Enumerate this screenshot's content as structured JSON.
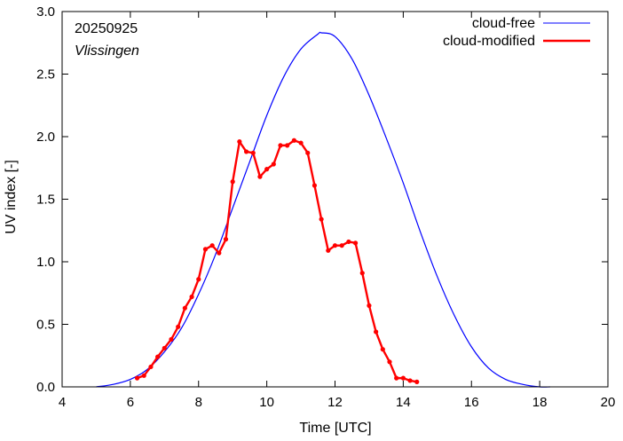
{
  "chart_data": {
    "type": "line",
    "date": "20250925",
    "station": "Vlissingen",
    "xlabel": "Time  [UTC]",
    "ylabel": "UV index  [-]",
    "xlim": [
      4,
      20
    ],
    "ylim": [
      0,
      3.0
    ],
    "x_ticks": [
      4,
      6,
      8,
      10,
      12,
      14,
      16,
      18,
      20
    ],
    "x_tick_labels": [
      "4",
      "6",
      "8",
      "10",
      "12",
      "14",
      "16",
      "18",
      "20"
    ],
    "y_ticks": [
      0,
      0.5,
      1.0,
      1.5,
      2.0,
      2.5,
      3.0
    ],
    "y_tick_labels": [
      "0.0",
      "0.5",
      "1.0",
      "1.5",
      "2.0",
      "2.5",
      "3.0"
    ],
    "legend_position": "top-right",
    "colors": {
      "cloud_free": "#0000ff",
      "cloud_modified": "#ff0000"
    },
    "series": [
      {
        "name": "cloud-free",
        "x": [
          5.0,
          5.5,
          6.0,
          6.5,
          7.0,
          7.5,
          8.0,
          8.5,
          9.0,
          9.5,
          10.0,
          10.5,
          11.0,
          11.5,
          11.6,
          12.0,
          12.5,
          13.0,
          13.5,
          14.0,
          14.5,
          15.0,
          15.5,
          16.0,
          16.5,
          17.0,
          17.5,
          18.0,
          18.3
        ],
        "values": [
          0.0,
          0.02,
          0.06,
          0.14,
          0.28,
          0.47,
          0.74,
          1.06,
          1.43,
          1.8,
          2.17,
          2.48,
          2.7,
          2.82,
          2.83,
          2.8,
          2.62,
          2.33,
          1.99,
          1.63,
          1.24,
          0.88,
          0.57,
          0.32,
          0.15,
          0.06,
          0.02,
          0.0,
          0.0
        ]
      },
      {
        "name": "cloud-modified",
        "x": [
          6.2,
          6.4,
          6.6,
          6.8,
          7.0,
          7.2,
          7.4,
          7.6,
          7.8,
          8.0,
          8.2,
          8.4,
          8.6,
          8.8,
          9.0,
          9.2,
          9.4,
          9.6,
          9.8,
          10.0,
          10.2,
          10.4,
          10.6,
          10.8,
          11.0,
          11.2,
          11.4,
          11.6,
          11.8,
          12.0,
          12.2,
          12.4,
          12.6,
          12.8,
          13.0,
          13.2,
          13.4,
          13.6,
          13.8,
          14.0,
          14.2,
          14.4,
          14.6,
          14.8,
          15.0,
          15.2,
          15.4,
          15.6,
          15.8,
          16.0,
          16.2,
          16.4
        ],
        "values": [
          0.07,
          0.09,
          0.16,
          0.24,
          0.31,
          0.38,
          0.48,
          0.63,
          0.72,
          0.86,
          1.1,
          1.13,
          1.07,
          1.18,
          1.64,
          1.96,
          1.88,
          1.87,
          1.68,
          1.74,
          1.78,
          1.93,
          1.93,
          1.97,
          1.95,
          1.87,
          1.61,
          1.34,
          1.09,
          1.13,
          1.13,
          1.16,
          1.15,
          0.91,
          0.65,
          0.44,
          0.3,
          0.2,
          0.07,
          0.07,
          0.05,
          0.04,
          null,
          null,
          null,
          null,
          null,
          null,
          null,
          null,
          null,
          null
        ]
      }
    ]
  }
}
